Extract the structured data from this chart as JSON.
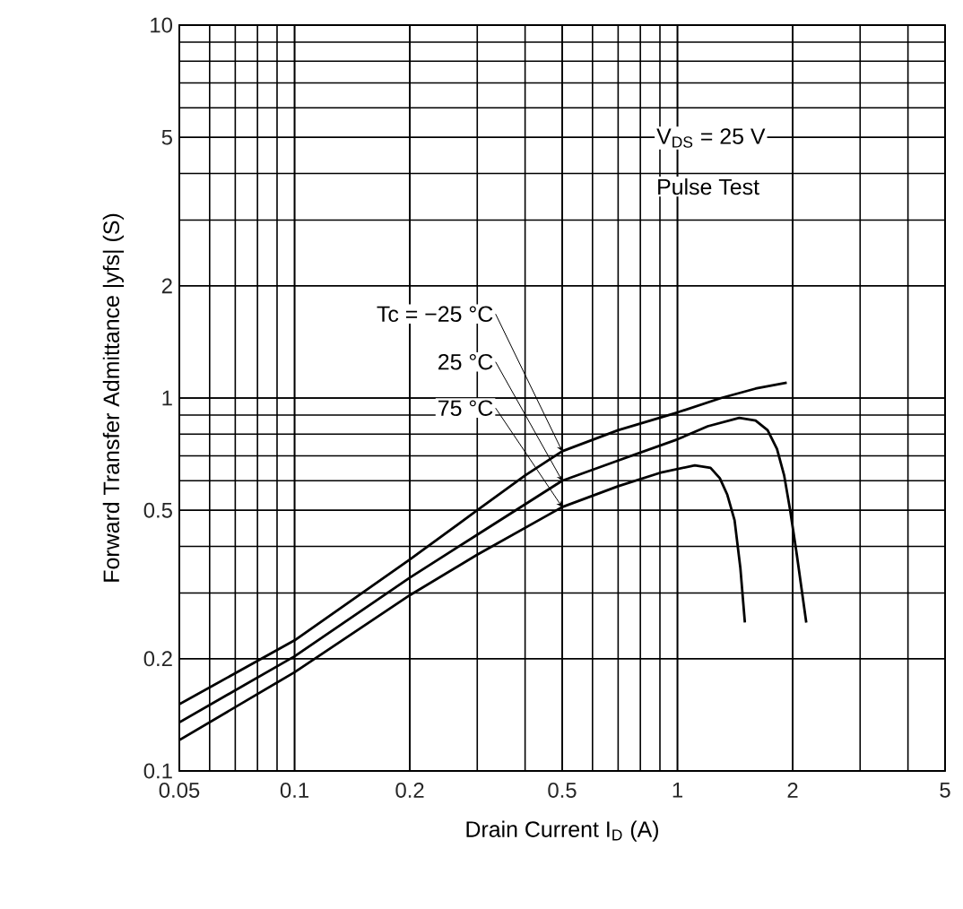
{
  "chart_data": {
    "type": "line",
    "xlabel": "Drain Current  I$_{D}$  (A)",
    "ylabel": "Forward Transfer Admittance  |yfs|  (S)",
    "log": "xy",
    "grid": true,
    "legend": false,
    "marker": "none",
    "line_style": "solid",
    "xlim": [
      0.05,
      5
    ],
    "ylim": [
      0.1,
      10
    ],
    "xticks": [
      0.05,
      0.1,
      0.2,
      0.5,
      1,
      2,
      5
    ],
    "yticks": [
      0.1,
      0.2,
      0.5,
      1,
      2,
      5,
      10
    ],
    "series": [
      {
        "name": "Tc = −25 °C",
        "color": "#000000",
        "x": [
          0.05,
          0.1,
          0.2,
          0.3,
          0.4,
          0.5,
          0.7,
          1,
          1.3,
          1.6,
          1.93
        ],
        "values": [
          0.151,
          0.224,
          0.369,
          0.5,
          0.62,
          0.72,
          0.82,
          0.915,
          1.0,
          1.06,
          1.1
        ]
      },
      {
        "name": "25 °C",
        "color": "#000000",
        "x": [
          0.05,
          0.1,
          0.2,
          0.3,
          0.5,
          0.7,
          1,
          1.2,
          1.45,
          1.6,
          1.72,
          1.82,
          1.9,
          1.97,
          2.05,
          2.17
        ],
        "values": [
          0.135,
          0.203,
          0.33,
          0.43,
          0.6,
          0.68,
          0.775,
          0.84,
          0.885,
          0.87,
          0.82,
          0.73,
          0.62,
          0.5,
          0.38,
          0.25
        ]
      },
      {
        "name": "75 °C",
        "color": "#000000",
        "x": [
          0.05,
          0.1,
          0.2,
          0.3,
          0.5,
          0.7,
          0.9,
          1.11,
          1.22,
          1.29,
          1.35,
          1.41,
          1.46,
          1.5
        ],
        "values": [
          0.121,
          0.184,
          0.296,
          0.38,
          0.51,
          0.58,
          0.63,
          0.66,
          0.65,
          0.61,
          0.55,
          0.47,
          0.35,
          0.25
        ]
      }
    ],
    "annotations": [
      "V$_{DS}$ = 25 V",
      "Pulse Test"
    ]
  }
}
